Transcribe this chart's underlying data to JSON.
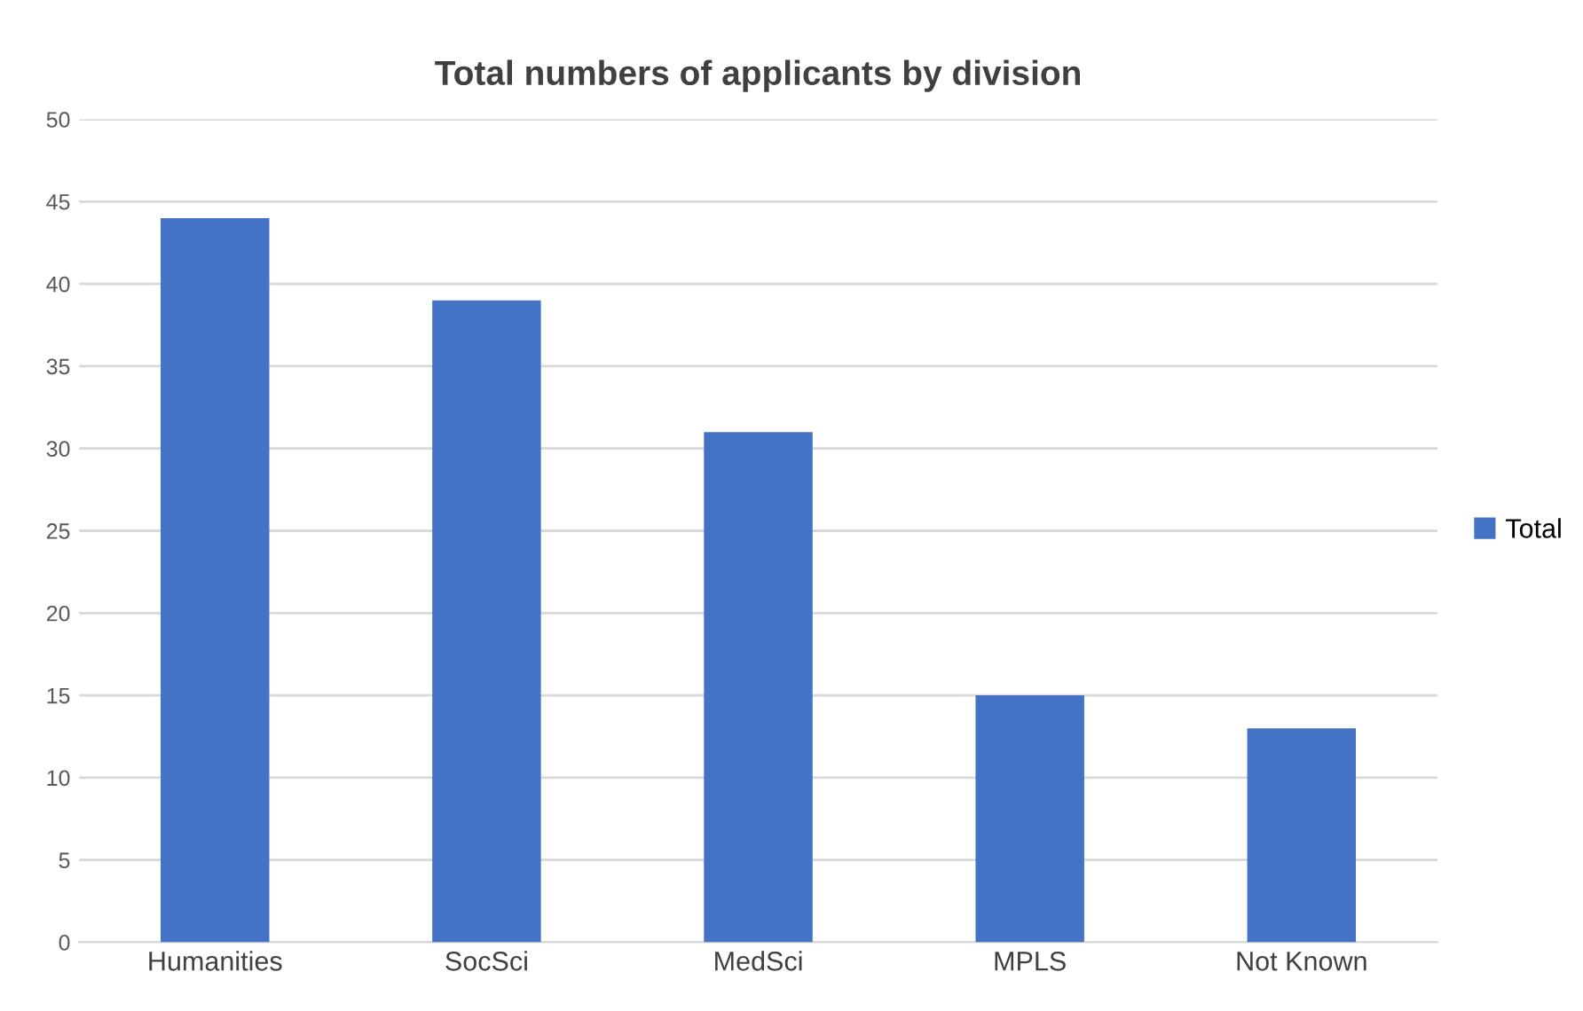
{
  "chart_data": {
    "type": "bar",
    "title": "Total numbers of applicants by division",
    "categories": [
      "Humanities",
      "SocSci",
      "MedSci",
      "MPLS",
      "Not Known"
    ],
    "series": [
      {
        "name": "Total",
        "color": "#4472c4",
        "values": [
          44,
          39,
          31,
          15,
          13
        ]
      }
    ],
    "ylim": [
      0,
      50
    ],
    "yticks": [
      0,
      5,
      10,
      15,
      20,
      25,
      30,
      35,
      40,
      45,
      50
    ],
    "grid": "y",
    "legend": "right"
  }
}
